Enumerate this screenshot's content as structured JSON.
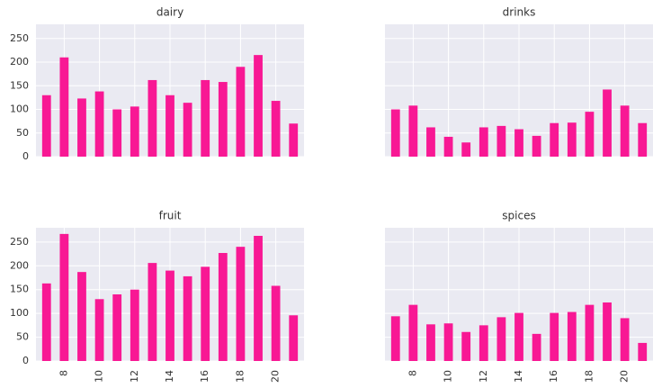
{
  "chart_data": [
    {
      "type": "bar",
      "title": "dairy",
      "categories": [
        null,
        8,
        null,
        10,
        null,
        12,
        null,
        14,
        null,
        16,
        null,
        18,
        null,
        20,
        null
      ],
      "values": [
        130,
        210,
        123,
        138,
        100,
        106,
        162,
        130,
        114,
        162,
        158,
        190,
        215,
        118,
        70
      ],
      "color": "#f81894",
      "ylim": [
        0,
        280
      ],
      "yticks": [
        0,
        50,
        100,
        150,
        200,
        250
      ],
      "grid": true
    },
    {
      "type": "bar",
      "title": "drinks",
      "categories": [
        null,
        8,
        null,
        10,
        null,
        12,
        null,
        14,
        null,
        16,
        null,
        18,
        null,
        20,
        null
      ],
      "values": [
        100,
        108,
        62,
        42,
        30,
        62,
        65,
        58,
        44,
        71,
        72,
        95,
        142,
        108,
        71
      ],
      "color": "#f81894",
      "ylim": [
        0,
        280
      ],
      "yticks": [
        0,
        50,
        100,
        150,
        200,
        250
      ],
      "grid": true
    },
    {
      "type": "bar",
      "title": "fruit",
      "categories": [
        null,
        8,
        null,
        10,
        null,
        12,
        null,
        14,
        null,
        16,
        null,
        18,
        null,
        20,
        null
      ],
      "values": [
        163,
        267,
        187,
        130,
        140,
        150,
        206,
        190,
        178,
        198,
        227,
        240,
        263,
        158,
        96
      ],
      "color": "#f81894",
      "ylim": [
        0,
        280
      ],
      "yticks": [
        0,
        50,
        100,
        150,
        200,
        250
      ],
      "grid": true
    },
    {
      "type": "bar",
      "title": "spices",
      "categories": [
        null,
        8,
        null,
        10,
        null,
        12,
        null,
        14,
        null,
        16,
        null,
        18,
        null,
        20,
        null
      ],
      "values": [
        94,
        118,
        77,
        79,
        61,
        75,
        92,
        101,
        57,
        101,
        103,
        118,
        123,
        90,
        38
      ],
      "color": "#f81894",
      "ylim": [
        0,
        280
      ],
      "yticks": [
        0,
        50,
        100,
        150,
        200,
        250
      ],
      "grid": true
    }
  ]
}
